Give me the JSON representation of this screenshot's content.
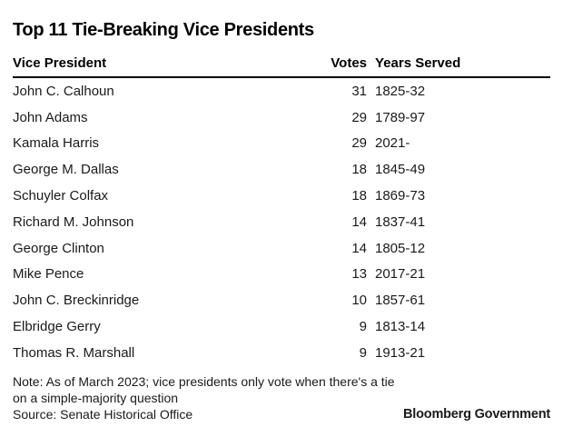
{
  "title": "Top 11 Tie-Breaking Vice Presidents",
  "chart_data": {
    "type": "table",
    "title": "Top 11 Tie-Breaking Vice Presidents",
    "columns": [
      "Vice President",
      "Votes",
      "Years Served"
    ],
    "rows": [
      [
        "John C. Calhoun",
        31,
        "1825-32"
      ],
      [
        "John Adams",
        29,
        "1789-97"
      ],
      [
        "Kamala Harris",
        29,
        "2021-"
      ],
      [
        "George M. Dallas",
        18,
        "1845-49"
      ],
      [
        "Schuyler Colfax",
        18,
        "1869-73"
      ],
      [
        "Richard M. Johnson",
        14,
        "1837-41"
      ],
      [
        "George Clinton",
        14,
        "1805-12"
      ],
      [
        "Mike Pence",
        13,
        "2017-21"
      ],
      [
        "John C. Breckinridge",
        10,
        "1857-61"
      ],
      [
        "Elbridge Gerry",
        9,
        "1813-14"
      ],
      [
        "Thomas R. Marshall",
        9,
        "1913-21"
      ]
    ],
    "votes_column_alignment": "right",
    "layout": "header-rule-black-2px, no row separators"
  },
  "footer": {
    "note_line1": "Note: As of March 2023; vice presidents only vote when there's a tie",
    "note_line2": "on a simple-majority question",
    "source": "Source: Senate Historical Office",
    "brand": "Bloomberg Government"
  },
  "colors": {
    "background": "#ffffff",
    "text": "#1a1a1a",
    "heading": "#000000",
    "rule": "#000000"
  }
}
